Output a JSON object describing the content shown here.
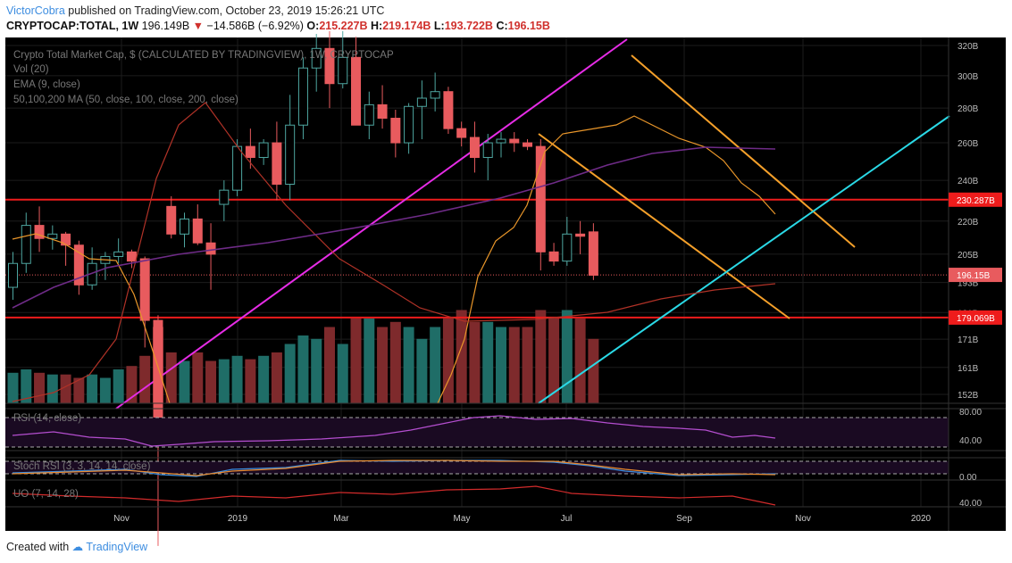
{
  "header": {
    "author": "VictorCobra",
    "published_text": "published on TradingView.com, October 23, 2019 15:26:21 UTC",
    "symbol": "CRYPTOCAP:TOTAL, 1W",
    "last": "196.149B",
    "change": "−14.586B (−6.92%)",
    "open_label": "O:",
    "open": "215.227B",
    "high_label": "H:",
    "high": "219.174B",
    "low_label": "L:",
    "low": "193.722B",
    "close_label": "C:",
    "close": "196.15B"
  },
  "footer": {
    "created_with": "Created with",
    "brand": "TradingView"
  },
  "legend": {
    "title": "Crypto Total Market Cap, $ (CALCULATED BY TRADINGVIEW), 1W, CRYPTOCAP",
    "vol": "Vol (20)",
    "ema": "EMA (9, close)",
    "ma": "50,100,200 MA (50, close, 100, close, 200, close)",
    "rsi": "RSI (14, close)",
    "stoch": "Stoch RSI (3, 3, 14, 14, close)",
    "uo": "UO (7, 14, 28)"
  },
  "colors": {
    "background": "#000000",
    "up": "#4ea6a0",
    "down": "#e85b5e",
    "vol_up": "#1f6d67",
    "vol_down": "#7e2a2c",
    "ema": "#e9962a",
    "ma50": "#b03227",
    "ma100": "#6e2b87",
    "channel_pink": "#e62ce6",
    "channel_orange": "#f5a02a",
    "trend_cyan": "#2ad9e6",
    "hline_red": "#ee1c1c",
    "rsi": "#b44ecf",
    "stoch_k": "#3a8de0",
    "stoch_d": "#e98a2e",
    "uo": "#d22b2b"
  },
  "price_axis": {
    "ticks": [
      "320B",
      "300B",
      "280B",
      "260B",
      "240B",
      "220B",
      "205B",
      "193B",
      "181B",
      "171B",
      "161B",
      "152B"
    ],
    "tags": [
      {
        "label": "230.287B",
        "color": "#ee1c1c"
      },
      {
        "label": "196.15B",
        "color": "#e85b5e"
      },
      {
        "label": "179.069B",
        "color": "#ee1c1c"
      }
    ]
  },
  "rsi_axis": {
    "ticks": [
      "80.00",
      "40.00"
    ]
  },
  "stoch_axis": {
    "ticks": [
      "0.00"
    ]
  },
  "uo_axis": {
    "ticks": [
      "40.00"
    ]
  },
  "time_axis": {
    "ticks": [
      "Nov",
      "2019",
      "Mar",
      "May",
      "Jul",
      "Sep",
      "Nov",
      "2020"
    ]
  },
  "chart_data": {
    "type": "candlestick",
    "title": "Crypto Total Market Cap, $ (CALCULATED BY TRADINGVIEW), 1W, CRYPTOCAP",
    "xlabel": "",
    "ylabel": "",
    "scale": "log",
    "ylim": [
      150,
      325
    ],
    "unit": "B USD",
    "candles_weekly_OHLC_B": [
      [
        191,
        206,
        186,
        201
      ],
      [
        201,
        224,
        197,
        218
      ],
      [
        218,
        227,
        206,
        212
      ],
      [
        212,
        218,
        207,
        214
      ],
      [
        214,
        215,
        200,
        209
      ],
      [
        209,
        211,
        188,
        192
      ],
      [
        192,
        208,
        190,
        201
      ],
      [
        201,
        206,
        194,
        204
      ],
      [
        204,
        212,
        201,
        206
      ],
      [
        206,
        207,
        199,
        202
      ],
      [
        203,
        204,
        168,
        178
      ],
      [
        178,
        180,
        110,
        140
      ],
      [
        227,
        232,
        212,
        214
      ],
      [
        214,
        224,
        208,
        221
      ],
      [
        221,
        228,
        209,
        210
      ],
      [
        210,
        219,
        190,
        205
      ],
      [
        228,
        240,
        220,
        235
      ],
      [
        235,
        262,
        232,
        258
      ],
      [
        258,
        268,
        246,
        252
      ],
      [
        252,
        262,
        248,
        260
      ],
      [
        260,
        272,
        230,
        238
      ],
      [
        238,
        288,
        230,
        270
      ],
      [
        270,
        312,
        262,
        305
      ],
      [
        305,
        328,
        290,
        318
      ],
      [
        318,
        330,
        280,
        295
      ],
      [
        295,
        330,
        292,
        312
      ],
      [
        312,
        326,
        270,
        270
      ],
      [
        270,
        290,
        262,
        282
      ],
      [
        282,
        294,
        268,
        274
      ],
      [
        274,
        279,
        252,
        260
      ],
      [
        260,
        283,
        254,
        281
      ],
      [
        281,
        297,
        262,
        286
      ],
      [
        286,
        302,
        278,
        290
      ],
      [
        290,
        293,
        265,
        268
      ],
      [
        268,
        272,
        258,
        263
      ],
      [
        263,
        272,
        244,
        252
      ],
      [
        252,
        265,
        240,
        260
      ],
      [
        260,
        266,
        252,
        262
      ],
      [
        262,
        266,
        255,
        260
      ],
      [
        260,
        262,
        256,
        258
      ],
      [
        258,
        262,
        198,
        206
      ],
      [
        206,
        210,
        200,
        202
      ],
      [
        202,
        222,
        200,
        214
      ],
      [
        214,
        220,
        205,
        213
      ],
      [
        215,
        219,
        194,
        196
      ]
    ],
    "horizontal_levels_B": [
      230.287,
      179.069
    ],
    "last_close_B": 196.15
  }
}
